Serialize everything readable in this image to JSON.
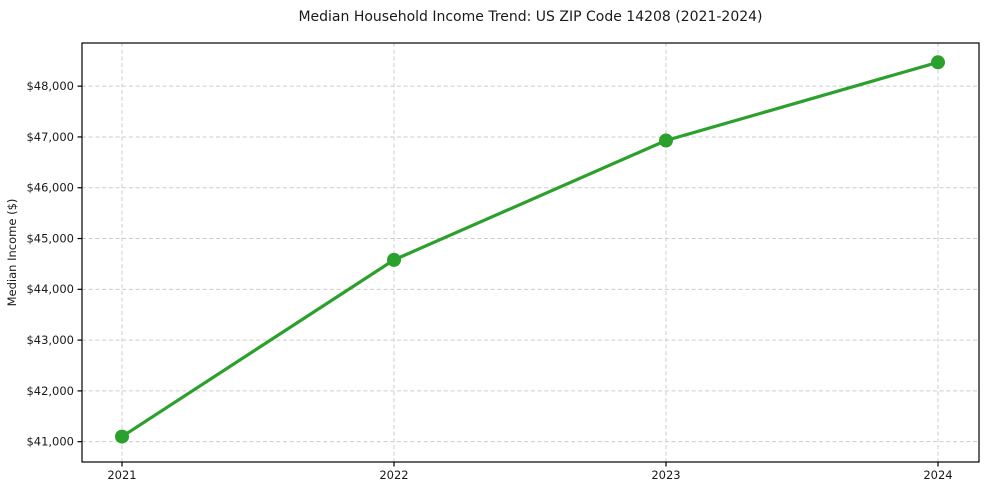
{
  "chart_data": {
    "type": "line",
    "title": "Median Household Income Trend: US ZIP Code 14208 (2021-2024)",
    "xlabel": "",
    "ylabel": "Median Income ($)",
    "categories": [
      "2021",
      "2022",
      "2023",
      "2024"
    ],
    "x": [
      2021,
      2022,
      2023,
      2024
    ],
    "series": [
      {
        "name": "Median Household Income",
        "values": [
          41100,
          44580,
          46930,
          48470
        ]
      }
    ],
    "y_ticks": [
      41000,
      42000,
      43000,
      44000,
      45000,
      46000,
      47000,
      48000
    ],
    "y_tick_labels": [
      "$41,000",
      "$42,000",
      "$43,000",
      "$44,000",
      "$45,000",
      "$46,000",
      "$47,000",
      "$48,000"
    ],
    "ylim": [
      40600,
      48850
    ],
    "grid": true,
    "grid_style": "dashed",
    "legend": false,
    "line_color": "#2ca02c",
    "marker": "circle",
    "marker_color": "#2ca02c",
    "grid_color": "#cccccc",
    "frame_color": "#000000",
    "background_color": "#ffffff"
  }
}
